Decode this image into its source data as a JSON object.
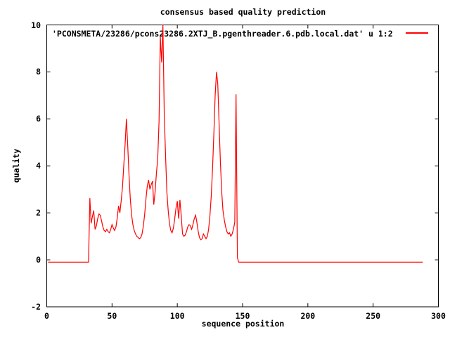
{
  "figure": {
    "title": "consensus based quality prediction",
    "xlabel": "sequence position",
    "ylabel": "quality",
    "legend_label": "'PCONSMETA/23286/pcons23286.2XTJ_B.pgenthreader.6.pdb.local.dat' u 1:2",
    "colors": {
      "line": "#ff0000",
      "axis": "#000000",
      "background": "#ffffff",
      "text": "#000000"
    }
  },
  "chart_data": {
    "type": "line",
    "title": "consensus based quality prediction",
    "xlabel": "sequence position",
    "ylabel": "quality",
    "xlim": [
      0,
      300
    ],
    "ylim": [
      -2,
      10
    ],
    "xticks": [
      0,
      50,
      100,
      150,
      200,
      250,
      300
    ],
    "yticks": [
      -2,
      0,
      2,
      4,
      6,
      8,
      10
    ],
    "grid": false,
    "legend_position": "inside-top",
    "series": [
      {
        "name": "'PCONSMETA/23286/pcons23286.2XTJ_B.pgenthreader.6.pdb.local.dat' u 1:2",
        "color": "#ff0000",
        "points": [
          [
            1,
            -0.1
          ],
          [
            32,
            -0.1
          ],
          [
            33,
            2.63
          ],
          [
            34,
            1.55
          ],
          [
            35,
            1.85
          ],
          [
            36,
            2.1
          ],
          [
            37,
            1.3
          ],
          [
            38,
            1.45
          ],
          [
            39,
            1.75
          ],
          [
            40,
            1.95
          ],
          [
            41,
            1.9
          ],
          [
            42,
            1.65
          ],
          [
            43,
            1.4
          ],
          [
            44,
            1.25
          ],
          [
            45,
            1.2
          ],
          [
            46,
            1.3
          ],
          [
            47,
            1.2
          ],
          [
            48,
            1.15
          ],
          [
            49,
            1.3
          ],
          [
            50,
            1.5
          ],
          [
            51,
            1.35
          ],
          [
            52,
            1.25
          ],
          [
            53,
            1.4
          ],
          [
            54,
            1.8
          ],
          [
            55,
            2.3
          ],
          [
            56,
            2.0
          ],
          [
            57,
            2.5
          ],
          [
            58,
            3.1
          ],
          [
            59,
            4.0
          ],
          [
            60,
            4.9
          ],
          [
            61,
            6.0
          ],
          [
            62,
            4.9
          ],
          [
            63,
            3.6
          ],
          [
            64,
            2.6
          ],
          [
            65,
            1.9
          ],
          [
            66,
            1.5
          ],
          [
            67,
            1.25
          ],
          [
            68,
            1.1
          ],
          [
            69,
            1.0
          ],
          [
            70,
            0.95
          ],
          [
            71,
            0.9
          ],
          [
            72,
            0.95
          ],
          [
            73,
            1.1
          ],
          [
            74,
            1.45
          ],
          [
            75,
            1.95
          ],
          [
            76,
            2.6
          ],
          [
            77,
            3.15
          ],
          [
            78,
            3.4
          ],
          [
            79,
            3.0
          ],
          [
            80,
            3.2
          ],
          [
            81,
            3.35
          ],
          [
            82,
            2.35
          ],
          [
            83,
            2.9
          ],
          [
            84,
            3.7
          ],
          [
            85,
            4.3
          ],
          [
            86,
            5.9
          ],
          [
            87,
            9.5
          ],
          [
            88,
            8.4
          ],
          [
            89,
            10.0
          ],
          [
            90,
            6.2
          ],
          [
            91,
            4.4
          ],
          [
            92,
            2.9
          ],
          [
            93,
            2.1
          ],
          [
            94,
            1.55
          ],
          [
            95,
            1.25
          ],
          [
            96,
            1.15
          ],
          [
            97,
            1.35
          ],
          [
            98,
            1.75
          ],
          [
            99,
            2.2
          ],
          [
            100,
            2.5
          ],
          [
            101,
            1.75
          ],
          [
            102,
            2.55
          ],
          [
            103,
            1.9
          ],
          [
            104,
            1.1
          ],
          [
            105,
            1.0
          ],
          [
            106,
            1.05
          ],
          [
            107,
            1.2
          ],
          [
            108,
            1.4
          ],
          [
            109,
            1.5
          ],
          [
            110,
            1.45
          ],
          [
            111,
            1.3
          ],
          [
            112,
            1.5
          ],
          [
            113,
            1.75
          ],
          [
            114,
            1.9
          ],
          [
            115,
            1.6
          ],
          [
            116,
            1.2
          ],
          [
            117,
            0.95
          ],
          [
            118,
            0.85
          ],
          [
            119,
            0.9
          ],
          [
            120,
            1.1
          ],
          [
            121,
            1.0
          ],
          [
            122,
            0.9
          ],
          [
            123,
            1.0
          ],
          [
            124,
            1.3
          ],
          [
            125,
            1.9
          ],
          [
            126,
            2.7
          ],
          [
            127,
            3.9
          ],
          [
            128,
            5.4
          ],
          [
            129,
            7.0
          ],
          [
            130,
            8.0
          ],
          [
            131,
            7.5
          ],
          [
            132,
            5.8
          ],
          [
            133,
            4.2
          ],
          [
            134,
            2.9
          ],
          [
            135,
            2.1
          ],
          [
            136,
            1.7
          ],
          [
            137,
            1.4
          ],
          [
            138,
            1.2
          ],
          [
            139,
            1.1
          ],
          [
            140,
            1.15
          ],
          [
            141,
            1.0
          ],
          [
            142,
            1.1
          ],
          [
            143,
            1.3
          ],
          [
            144,
            1.6
          ],
          [
            145,
            7.05
          ],
          [
            146,
            0.1
          ],
          [
            147,
            -0.1
          ],
          [
            288,
            -0.1
          ]
        ]
      }
    ]
  }
}
